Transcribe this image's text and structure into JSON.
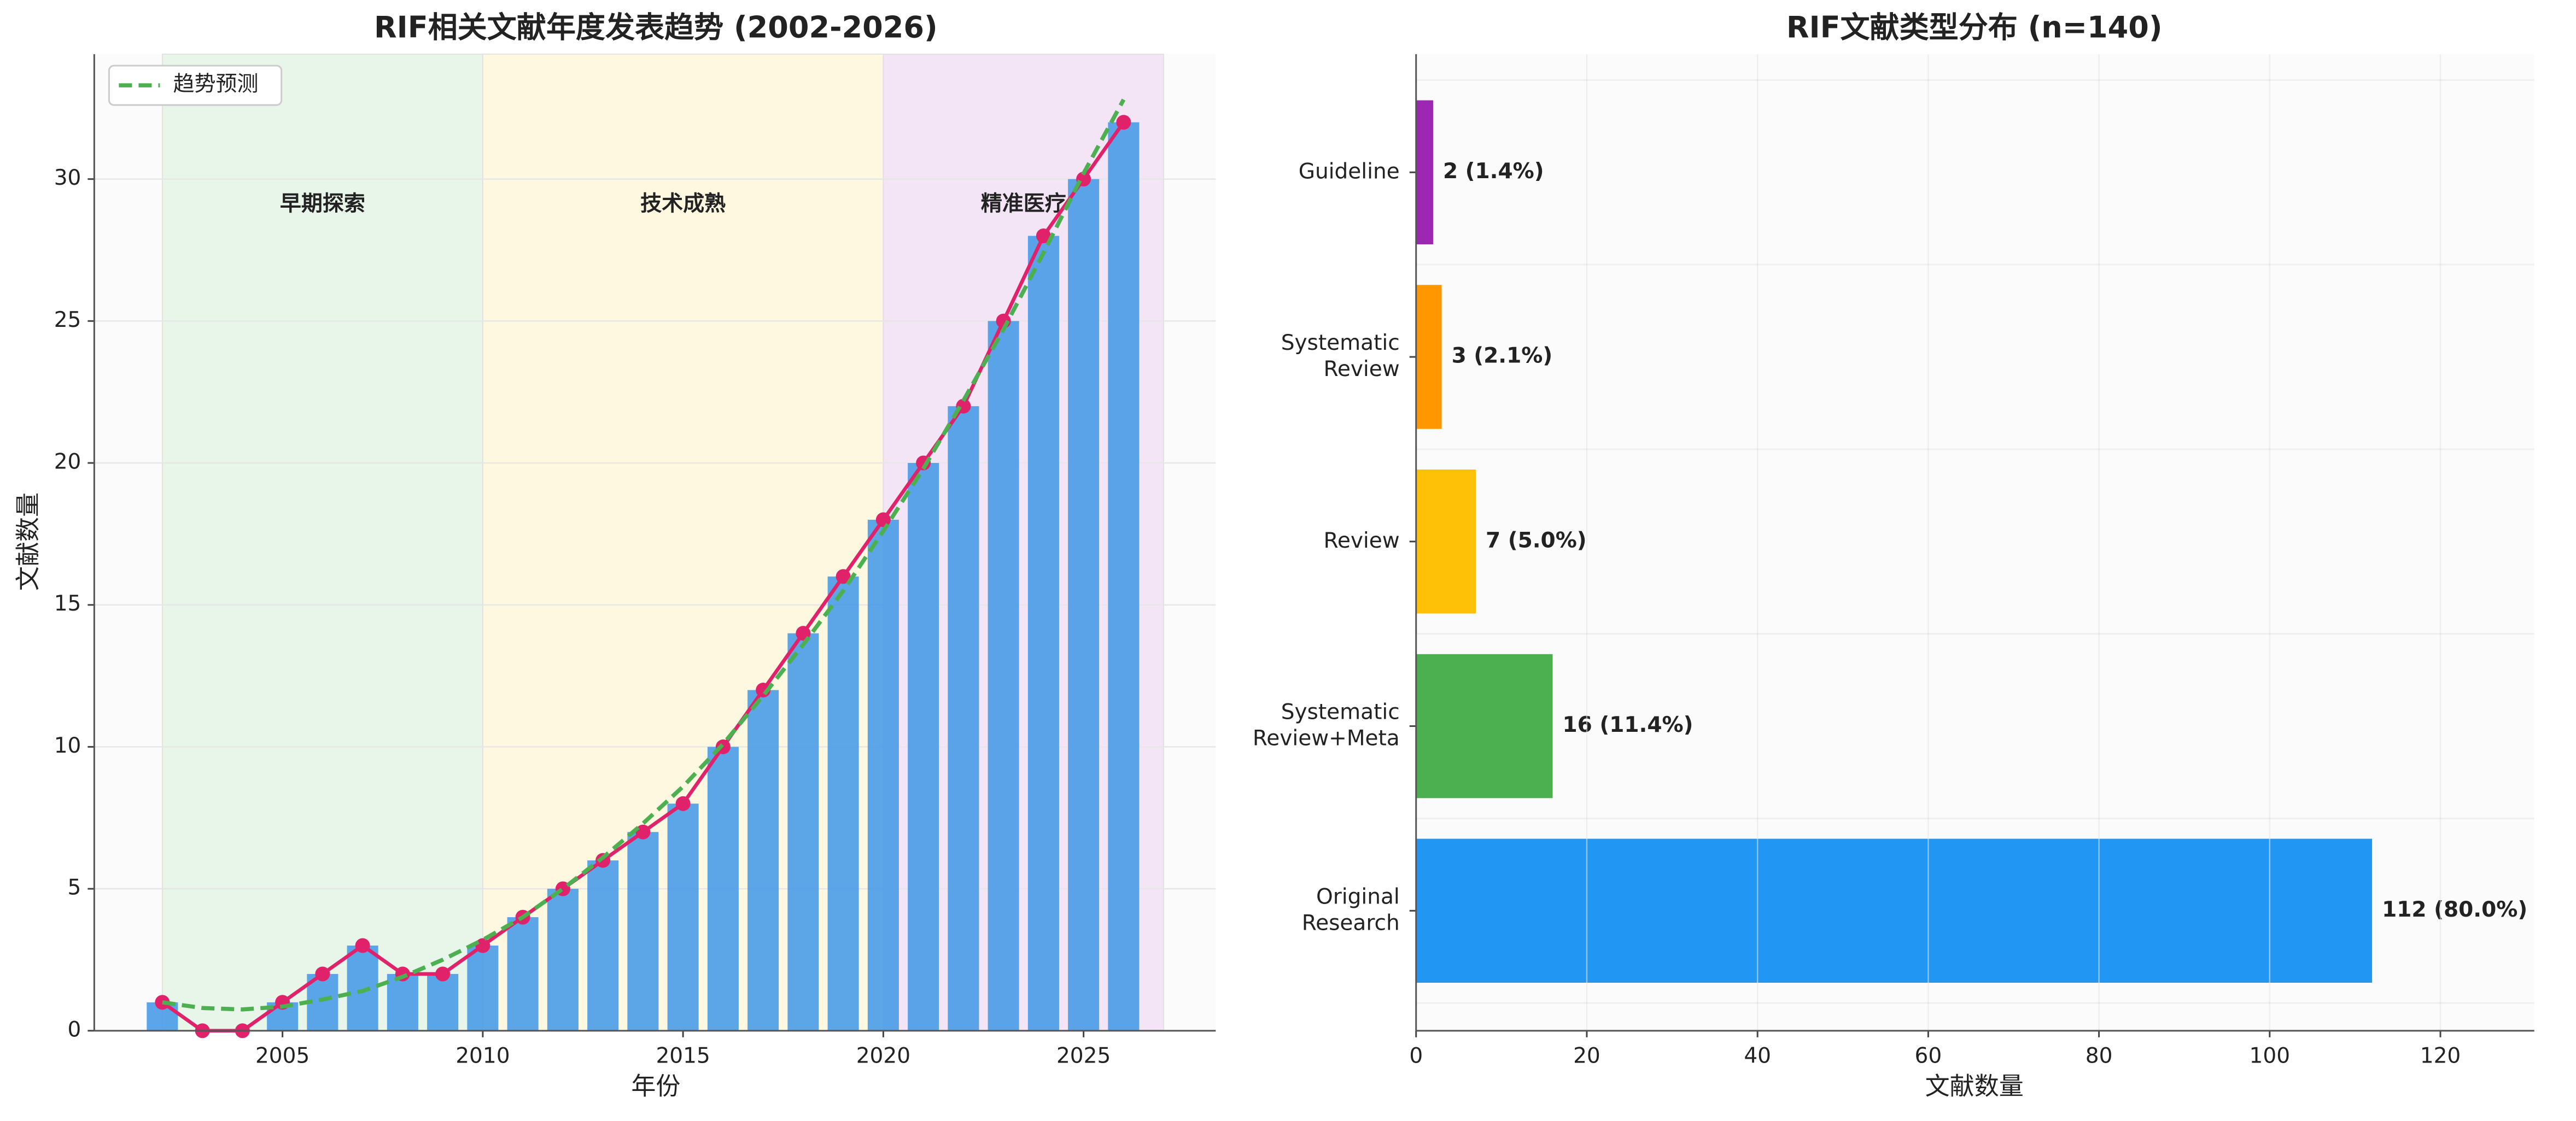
{
  "chart_data": [
    {
      "type": "bar_line",
      "title": "RIF相关文献年度发表趋势 (2002-2026)",
      "x_label": "年份",
      "y_label": "文献数量",
      "x": [
        2002,
        2003,
        2004,
        2005,
        2006,
        2007,
        2008,
        2009,
        2010,
        2011,
        2012,
        2013,
        2014,
        2015,
        2016,
        2017,
        2018,
        2019,
        2020,
        2021,
        2022,
        2023,
        2024,
        2025,
        2026
      ],
      "series": [
        {
          "kind": "bar",
          "color": "#4a9be8",
          "values": [
            1,
            0,
            0,
            1,
            2,
            3,
            2,
            2,
            3,
            4,
            5,
            6,
            7,
            8,
            10,
            12,
            14,
            16,
            18,
            20,
            22,
            25,
            28,
            30,
            32
          ]
        },
        {
          "kind": "line",
          "color": "#e0226a",
          "values": [
            1,
            0,
            0,
            1,
            2,
            3,
            2,
            2,
            3,
            4,
            5,
            6,
            7,
            8,
            10,
            12,
            14,
            16,
            18,
            20,
            22,
            25,
            28,
            30,
            32
          ]
        },
        {
          "kind": "dashed",
          "name": "趋势预测",
          "color": "#4caf50",
          "values": [
            1.0,
            0.8,
            0.75,
            0.85,
            1.1,
            1.4,
            1.9,
            2.5,
            3.2,
            4.0,
            5.0,
            6.1,
            7.3,
            8.6,
            10.1,
            11.8,
            13.6,
            15.5,
            17.6,
            19.8,
            22.2,
            24.7,
            27.4,
            30.2,
            32.8
          ]
        }
      ],
      "eras": [
        {
          "label": "早期探索",
          "start": 2002,
          "end": 2010,
          "color": "#e8f5e9",
          "label_color": "#4caf50"
        },
        {
          "label": "技术成熟",
          "start": 2010,
          "end": 2020,
          "color": "#fff8e1",
          "label_color": "#ff9800"
        },
        {
          "label": "精准医疗",
          "start": 2020,
          "end": 2027,
          "color": "#f3e5f5",
          "label_color": "#9c27b0"
        }
      ],
      "xlim": [
        2000.3,
        2028.3
      ],
      "xticks": [
        2005,
        2010,
        2015,
        2020,
        2025
      ],
      "ylim": [
        0,
        34.4
      ],
      "yticks": [
        0,
        5,
        10,
        15,
        20,
        25,
        30
      ],
      "grid": true,
      "legend": "upper left"
    },
    {
      "type": "barh",
      "title": "RIF文献类型分布 (n=140)",
      "x_label": "文献数量",
      "categories": [
        "Original\nResearch",
        "Systematic\nReview+Meta",
        "Review",
        "Systematic\nReview",
        "Guideline"
      ],
      "values": [
        112,
        16,
        7,
        3,
        2
      ],
      "value_labels": [
        "112 (80.0%)",
        "16 (11.4%)",
        "7 (5.0%)",
        "3 (2.1%)",
        "2 (1.4%)"
      ],
      "colors": [
        "#2196f3",
        "#4caf50",
        "#ffc107",
        "#ff9800",
        "#9c27b0"
      ],
      "xlim": [
        0,
        131
      ],
      "xticks": [
        0,
        20,
        40,
        60,
        80,
        100,
        120
      ],
      "grid": true
    }
  ]
}
